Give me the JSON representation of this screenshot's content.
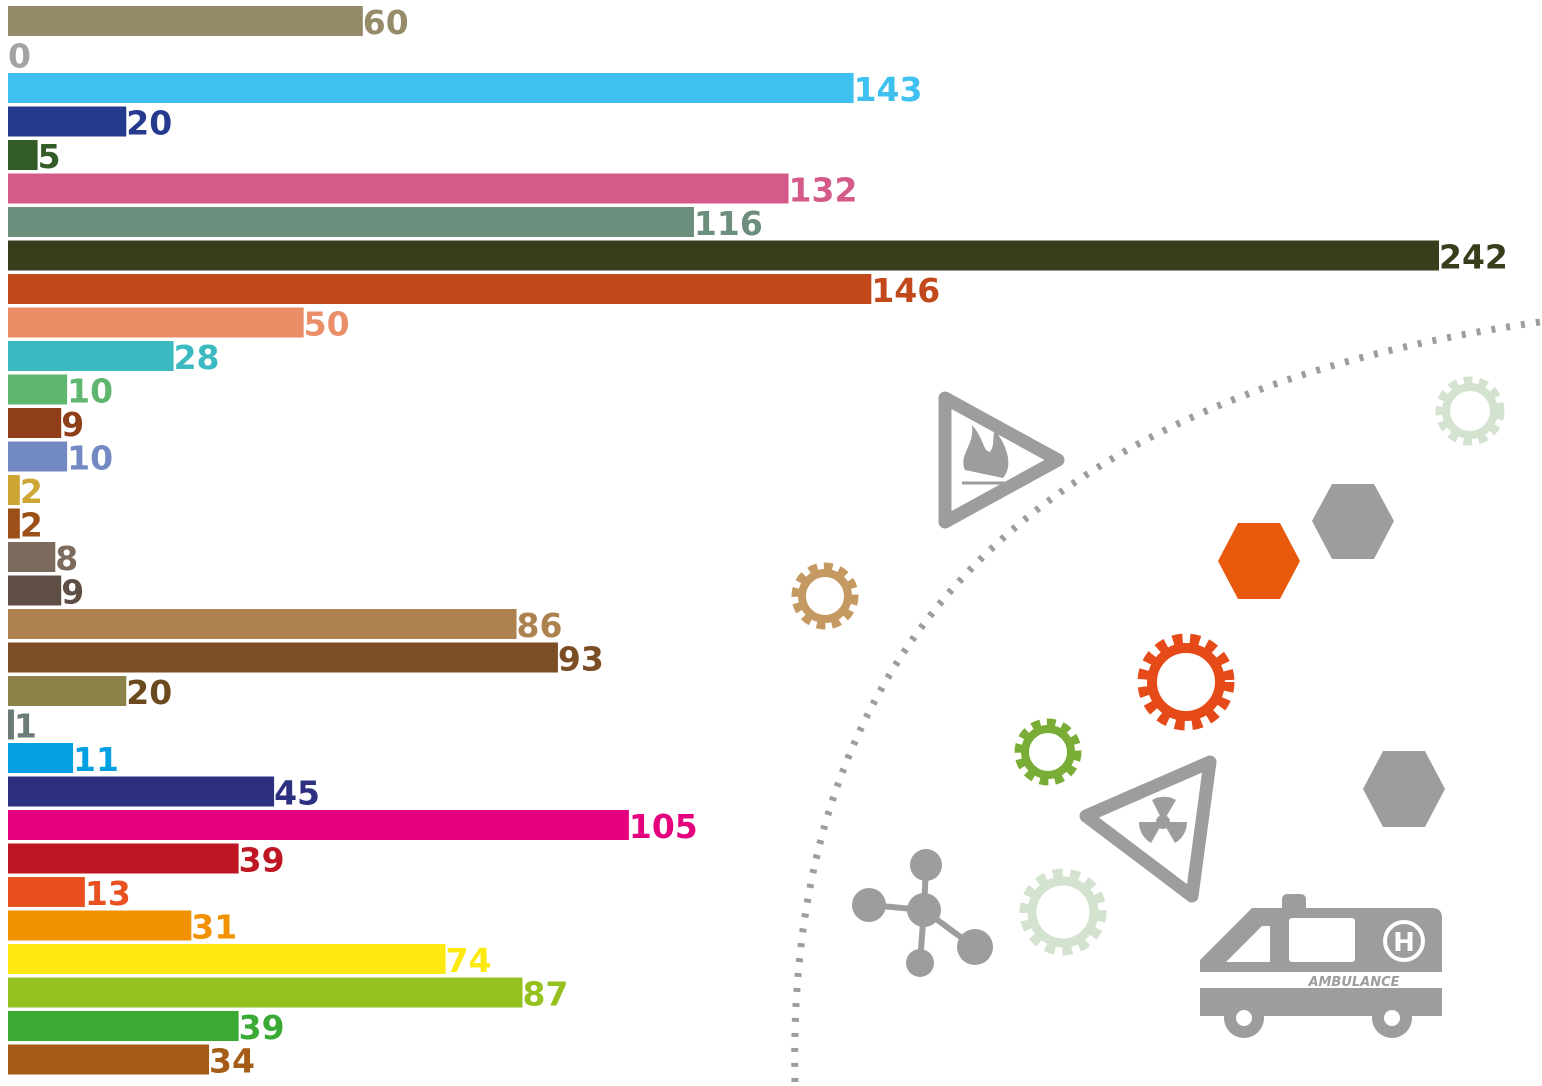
{
  "chart_data": {
    "type": "bar",
    "orientation": "horizontal",
    "title": "",
    "xlabel": "",
    "ylabel": "",
    "xlim": [
      0,
      242
    ],
    "grid": false,
    "legend": "none",
    "values": [
      60,
      0,
      143,
      20,
      5,
      132,
      116,
      242,
      146,
      50,
      28,
      10,
      9,
      10,
      2,
      2,
      8,
      9,
      86,
      93,
      20,
      1,
      11,
      45,
      105,
      39,
      13,
      31,
      74,
      87,
      39,
      34
    ],
    "colors": [
      "#958b69",
      "#a3a3a3",
      "#3ec1ef",
      "#253a8f",
      "#335c28",
      "#d45b89",
      "#6c8e7c",
      "#3a3d1b",
      "#c2491b",
      "#ea8e68",
      "#3cbac1",
      "#5fb66f",
      "#8e3e18",
      "#7289c3",
      "#cda535",
      "#9c4f16",
      "#7c6b5c",
      "#5f4e44",
      "#ae824f",
      "#7c4e26",
      "#8c8249",
      "#6b7b76",
      "#03a0e2",
      "#2d2f80",
      "#e5007e",
      "#be1622",
      "#e9501f",
      "#f39200",
      "#fde910",
      "#95c11f",
      "#3aaa35",
      "#a55c17"
    ],
    "label_colors": [
      "#958b69",
      "#a3a3a3",
      "#3ec1ef",
      "#253a8f",
      "#335c28",
      "#d45b89",
      "#6c8e7c",
      "#3a3d1b",
      "#c2491b",
      "#ea8e68",
      "#3cbac1",
      "#5fb66f",
      "#8e3e18",
      "#7289c3",
      "#cda535",
      "#9c4f16",
      "#7c6b5c",
      "#5f4e44",
      "#ae824f",
      "#7c4e26",
      "#6a4a1e",
      "#6b7b76",
      "#03a0e2",
      "#2d2f80",
      "#e5007e",
      "#be1622",
      "#e9501f",
      "#f39200",
      "#fde910",
      "#95c11f",
      "#3aaa35",
      "#a55c17"
    ]
  },
  "decoration": {
    "ambulance_label": "AMBULANCE",
    "ambulance_badge": "H",
    "icons": [
      "flammable-warning-icon",
      "radiation-warning-icon",
      "ambulance-icon",
      "molecule-icon",
      "gear-icon",
      "hexagon-icon"
    ],
    "colors": {
      "grey": "#9d9d9c",
      "orange": "#e8590c",
      "red_orange": "#e64a19",
      "tan": "#c49a62",
      "green": "#7aad35",
      "pale_green": "#d3e3cf"
    }
  }
}
